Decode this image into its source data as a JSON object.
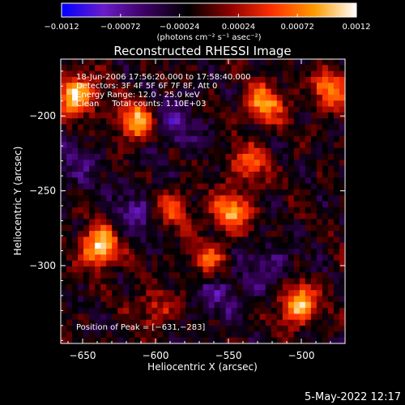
{
  "chart_data": {
    "type": "heatmap",
    "title": "Reconstructed RHESSI Image",
    "xlabel": "Heliocentric X (arcsec)",
    "ylabel": "Heliocentric Y (arcsec)",
    "xlim": [
      -665,
      -470
    ],
    "ylim": [
      -352,
      -162
    ],
    "x_ticks": [
      -650,
      -600,
      -550,
      -500
    ],
    "x_tick_labels": [
      "−650",
      "−600",
      "−550",
      "−500"
    ],
    "y_ticks": [
      -200,
      -250,
      -300
    ],
    "y_tick_labels": [
      "−200",
      "−250",
      "−300"
    ],
    "grid": false,
    "colorbar": {
      "min": -0.0012,
      "max": 0.0012,
      "ticks": [
        -0.0012,
        -0.00072,
        -0.00024,
        0.00024,
        0.00072,
        0.0012
      ],
      "tick_labels": [
        "−0.0012",
        "−0.00072",
        "−0.00024",
        "0.00024",
        "0.00072",
        "0.0012"
      ],
      "label": "(photons cm⁻² s⁻¹ asec⁻²)",
      "colormap": [
        "#0000ff",
        "#6a1cc8",
        "#3a0060",
        "#000000",
        "#8c0000",
        "#ff3000",
        "#ff9a00",
        "#ffffff"
      ]
    },
    "annotations": [
      "18-Jun-2006 17:56:20.000 to 17:58:40.000",
      "Detectors: 3F 4F 5F 6F 7F 8F, Att 0",
      "Energy Range: 12.0 - 25.0 keV",
      "Clean     Total counts: 1.10E+03"
    ],
    "peak_label": "Position of Peak = [−631,−283]",
    "peak_position": [
      -631,
      -283
    ],
    "grid_size": [
      50,
      48
    ],
    "hot_sources": [
      {
        "x": -638,
        "y": -287,
        "peak": 1.0
      },
      {
        "x": -654,
        "y": -186,
        "peak": 0.95
      },
      {
        "x": -612,
        "y": -204,
        "peak": 0.9
      },
      {
        "x": -502,
        "y": -325,
        "peak": 0.9
      },
      {
        "x": -548,
        "y": -264,
        "peak": 0.8
      },
      {
        "x": -525,
        "y": -192,
        "peak": 0.75
      },
      {
        "x": -480,
        "y": -182,
        "peak": 0.7
      },
      {
        "x": -590,
        "y": -262,
        "peak": 0.55
      },
      {
        "x": -536,
        "y": -232,
        "peak": 0.55
      },
      {
        "x": -563,
        "y": -296,
        "peak": 0.5
      },
      {
        "x": -600,
        "y": -330,
        "peak": 0.4
      }
    ],
    "cold_sources": [
      {
        "x": -590,
        "y": -205,
        "depth": 0.6
      },
      {
        "x": -610,
        "y": -265,
        "depth": 0.55
      },
      {
        "x": -555,
        "y": -318,
        "depth": 0.5
      },
      {
        "x": -520,
        "y": -300,
        "depth": 0.45
      },
      {
        "x": -655,
        "y": -232,
        "depth": 0.4
      }
    ]
  },
  "footer": {
    "timestamp": "5-May-2022 12:17"
  }
}
